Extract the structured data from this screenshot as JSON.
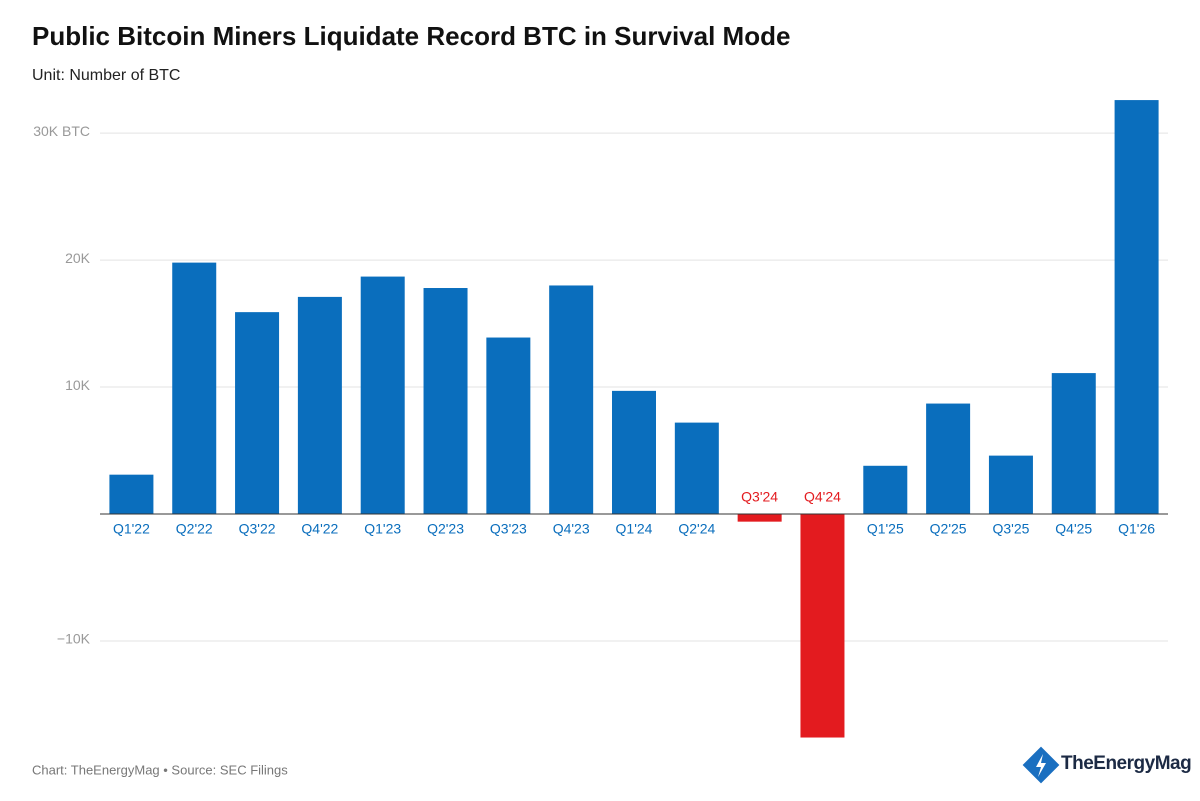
{
  "chart_data": {
    "type": "bar",
    "title": "Public Bitcoin Miners Liquidate Record BTC in Survival Mode",
    "subtitle": "Unit: Number of BTC",
    "source": "Chart: TheEnergyMag • Source: SEC Filings",
    "brand": "TheEnergyMag",
    "categories": [
      "Q1'22",
      "Q2'22",
      "Q3'22",
      "Q4'22",
      "Q1'23",
      "Q2'23",
      "Q3'23",
      "Q4'23",
      "Q1'24",
      "Q2'24",
      "Q3'24",
      "Q4'24",
      "Q1'25",
      "Q2'25",
      "Q3'25",
      "Q4'25",
      "Q1'26"
    ],
    "values": [
      3100,
      19800,
      15900,
      17100,
      18700,
      17800,
      13900,
      18000,
      9700,
      7200,
      -600,
      -17600,
      3800,
      8700,
      4600,
      11100,
      32600
    ],
    "color": "#0a6ebd",
    "negative_color": "#e31b1f",
    "ylim": [
      -18000,
      33000
    ],
    "yticks": [
      {
        "value": -10000,
        "label": "−10K"
      },
      {
        "value": 10000,
        "label": "10K"
      },
      {
        "value": 20000,
        "label": "20K"
      },
      {
        "value": 30000,
        "label": "30K BTC"
      }
    ],
    "grid": true
  }
}
